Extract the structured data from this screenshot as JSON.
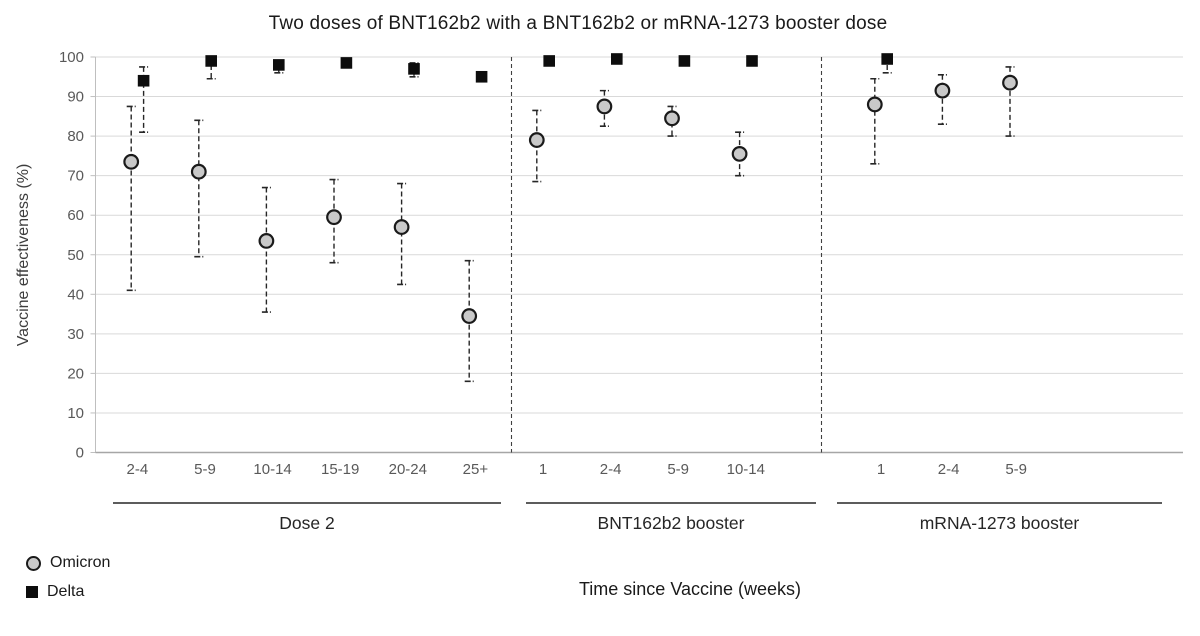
{
  "chart_data": {
    "type": "scatter",
    "title": "Two doses of BNT162b2 with a BNT162b2 or mRNA-1273 booster dose",
    "ylabel": "Vaccine effectiveness (%)",
    "xlabel": "Time since Vaccine (weeks)",
    "ylim": [
      0,
      100
    ],
    "ytick_step": 10,
    "grid": true,
    "legend_position": "bottom-left",
    "yticks": [
      0,
      10,
      20,
      30,
      40,
      50,
      60,
      70,
      80,
      90,
      100
    ],
    "groups": [
      {
        "label": "Dose 2",
        "categories": [
          "2-4",
          "5-9",
          "10-14",
          "15-19",
          "20-24",
          "25+"
        ]
      },
      {
        "label": "BNT162b2 booster",
        "categories": [
          "1",
          "2-4",
          "5-9",
          "10-14"
        ]
      },
      {
        "label": "mRNA-1273 booster",
        "categories": [
          "1",
          "2-4",
          "5-9"
        ]
      }
    ],
    "series": [
      {
        "name": "Omicron",
        "marker": "circle",
        "marker_fill": "#c9c9c9",
        "marker_stroke": "#1a1a1a",
        "values": [
          73.5,
          71,
          53.5,
          59.5,
          57,
          34.5,
          79,
          87.5,
          84.5,
          75.5,
          88,
          91.5,
          93.5
        ],
        "ci_low": [
          41,
          49.5,
          35.5,
          48,
          42.5,
          18,
          68.5,
          82.5,
          80,
          70,
          73,
          83,
          80
        ],
        "ci_high": [
          87.5,
          84,
          67,
          69,
          68,
          48.5,
          86.5,
          91.5,
          87.5,
          81,
          94.5,
          95.5,
          97.5
        ]
      },
      {
        "name": "Delta",
        "marker": "square",
        "marker_fill": "#0d0d0d",
        "marker_stroke": "#0d0d0d",
        "values": [
          94,
          99,
          98,
          98.5,
          97,
          95,
          99,
          99.5,
          99,
          99,
          99.5,
          null,
          null
        ],
        "ci_low": [
          81,
          94.5,
          96,
          null,
          95,
          null,
          null,
          null,
          null,
          null,
          96,
          null,
          null
        ],
        "ci_high": [
          97.5,
          100,
          99,
          null,
          98.5,
          null,
          null,
          null,
          null,
          null,
          100,
          null,
          null
        ]
      }
    ],
    "colors": {
      "gridline": "#d9d9d9",
      "axis_line": "#bfbfbf",
      "bottom_axis_line": "#a6a6a6",
      "tick_label": "#595959",
      "group_label": "#262626",
      "separator": "#404040",
      "error_bar": "#262626"
    }
  }
}
